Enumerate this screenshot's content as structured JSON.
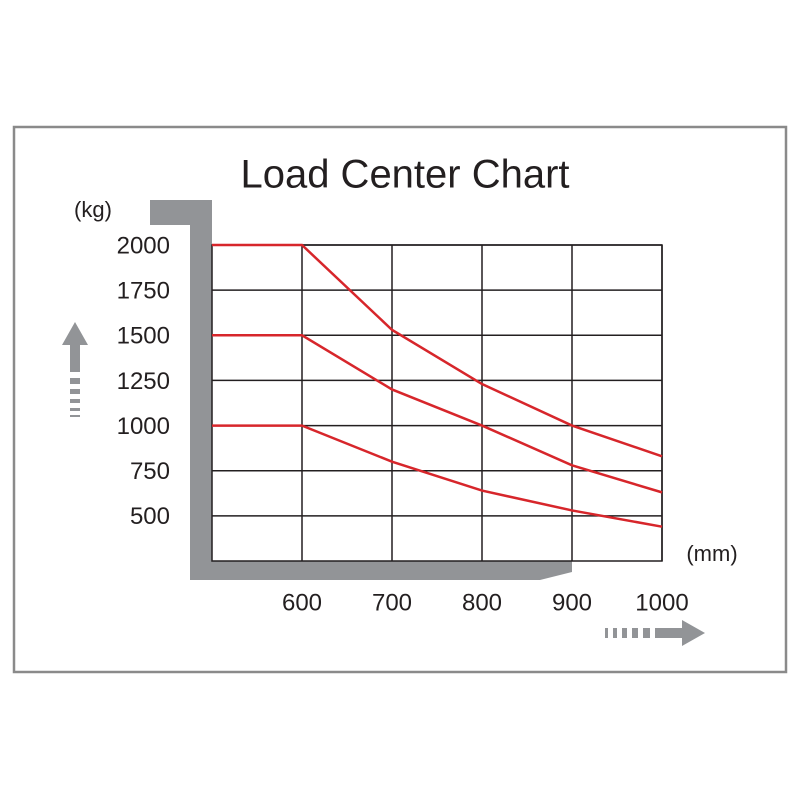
{
  "chart_data": {
    "type": "line",
    "title": "Load Center Chart",
    "y_unit": "(kg)",
    "x_unit": "(mm)",
    "x": [
      500,
      600,
      700,
      800,
      900,
      1000
    ],
    "series": [
      {
        "color": "#d7262b",
        "values": [
          2000,
          2000,
          1530,
          1230,
          1000,
          830
        ]
      },
      {
        "color": "#d7262b",
        "values": [
          1500,
          1500,
          1200,
          1000,
          780,
          630
        ]
      },
      {
        "color": "#d7262b",
        "values": [
          1000,
          1000,
          800,
          640,
          530,
          440
        ]
      }
    ],
    "xlim": [
      500,
      1000
    ],
    "xticks": [
      600,
      700,
      800,
      900,
      1000
    ],
    "ylim": [
      250,
      2000
    ],
    "yticks": [
      500,
      750,
      1000,
      1250,
      1500,
      1750,
      2000
    ],
    "grid": true
  }
}
